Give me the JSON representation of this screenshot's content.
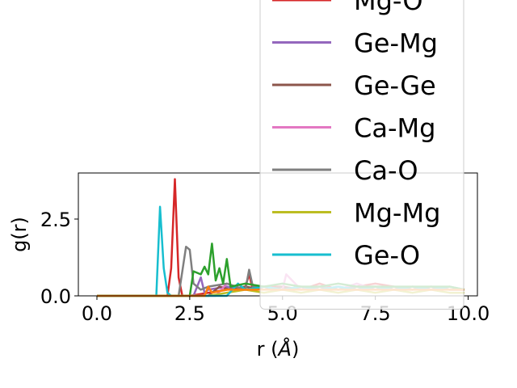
{
  "chart_data": {
    "type": "line",
    "title": "",
    "xlabel": "r (",
    "xlabel_unit": "Å",
    "xlabel_close": ")",
    "ylabel": "g(r)",
    "xlim": [
      -0.5,
      10.25
    ],
    "ylim": [
      0,
      4
    ],
    "xticks": [
      0.0,
      2.5,
      5.0,
      7.5,
      10.0
    ],
    "xtick_labels": [
      "0.0",
      "2.5",
      "5.0",
      "7.5",
      "10.0"
    ],
    "yticks": [
      0.0,
      2.5
    ],
    "ytick_labels": [
      "0.0",
      "2.5"
    ],
    "grid": false,
    "legend_placement": "upper right (overflowing above axes)",
    "series": [
      {
        "name": "Mg-O",
        "color": "#d62728",
        "x": [
          0,
          1.9,
          2.0,
          2.1,
          2.2,
          2.3,
          2.5,
          3.0,
          3.5,
          4.0,
          4.1,
          4.2,
          4.5,
          5.0,
          5.5,
          6.0,
          6.5,
          7.0,
          7.5,
          8.0,
          8.5,
          9.0,
          9.5,
          9.9
        ],
        "y": [
          0,
          0,
          0.9,
          3.8,
          0.6,
          0,
          0,
          0.1,
          0.2,
          0.3,
          0.7,
          0.2,
          0.3,
          0.3,
          0.2,
          0.4,
          0.2,
          0.3,
          0.4,
          0.3,
          0.2,
          0.3,
          0.2,
          0.2
        ]
      },
      {
        "name": "Ge-Mg",
        "color": "#9467bd",
        "x": [
          0,
          2.6,
          2.8,
          2.9,
          3.0,
          3.5,
          4.0,
          4.5,
          5.0,
          5.5,
          6.0,
          6.5,
          7.0,
          7.5,
          8.0,
          8.5,
          9.0,
          9.5,
          9.9
        ],
        "y": [
          0,
          0,
          0.6,
          0.1,
          0.2,
          0.3,
          0.2,
          0.3,
          0.2,
          0.3,
          0.2,
          0.3,
          0.2,
          0.3,
          0.2,
          0.2,
          0.3,
          0.2,
          0.2
        ]
      },
      {
        "name": "Ge-Ge",
        "color": "#8c564b",
        "x": [
          0,
          3.0,
          3.3,
          3.6,
          4.0,
          4.5,
          5.0,
          5.5,
          6.0,
          6.5,
          7.0,
          7.5,
          8.0,
          8.5,
          9.0,
          9.5,
          9.9
        ],
        "y": [
          0,
          0,
          0.3,
          0.2,
          0.3,
          0.2,
          0.3,
          0.2,
          0.3,
          0.2,
          0.3,
          0.3,
          0.2,
          0.3,
          0.2,
          0.3,
          0.2
        ]
      },
      {
        "name": "Ca-Mg",
        "color": "#e377c2",
        "x": [
          0,
          3.2,
          3.5,
          4.0,
          4.5,
          5.0,
          5.1,
          5.5,
          6.0,
          6.5,
          7.0,
          7.5,
          8.0,
          8.5,
          9.0,
          9.5,
          9.9
        ],
        "y": [
          0,
          0,
          0.4,
          0.2,
          0.3,
          0.2,
          0.7,
          0.2,
          0.3,
          0.2,
          0.4,
          0.2,
          0.3,
          0.2,
          0.3,
          0.2,
          0.2
        ]
      },
      {
        "name": "Ca-O",
        "color": "#7f7f7f",
        "x": [
          0,
          2.2,
          2.3,
          2.4,
          2.5,
          2.6,
          2.8,
          3.0,
          3.5,
          4.0,
          4.1,
          4.2,
          4.5,
          5.0,
          5.5,
          6.0,
          6.5,
          7.0,
          7.5,
          8.0,
          8.5,
          9.0,
          9.5,
          9.9
        ],
        "y": [
          0,
          0,
          0.8,
          1.6,
          1.5,
          0.4,
          0.2,
          0.3,
          0.4,
          0.2,
          0.85,
          0.3,
          0.3,
          0.2,
          0.3,
          0.3,
          0.2,
          0.3,
          0.2,
          0.3,
          0.2,
          0.3,
          0.2,
          0.2
        ]
      },
      {
        "name": "Mg-Mg",
        "color": "#bcbd22",
        "x": [
          0,
          3.0,
          3.5,
          4.0,
          4.5,
          5.0,
          5.5,
          6.0,
          6.5,
          7.0,
          7.5,
          8.0,
          8.5,
          9.0,
          9.5,
          9.9
        ],
        "y": [
          0,
          0,
          0.1,
          0.2,
          0.1,
          0.2,
          0.1,
          0.2,
          0.1,
          0.2,
          0.1,
          0.2,
          0.1,
          0.2,
          0.1,
          0.1
        ]
      },
      {
        "name": "Ge-O",
        "color": "#17becf",
        "x": [
          0,
          1.6,
          1.7,
          1.8,
          1.9,
          2.0,
          3.5,
          3.8,
          4.0,
          4.5,
          5.0,
          5.5,
          6.0,
          6.5,
          7.0,
          7.5,
          8.0,
          8.5,
          9.0,
          9.5,
          9.9
        ],
        "y": [
          0,
          0,
          2.9,
          0.9,
          0.1,
          0,
          0,
          0.4,
          0.2,
          0.3,
          0.2,
          0.3,
          0.2,
          0.3,
          0.2,
          0.3,
          0.2,
          0.3,
          0.2,
          0.3,
          0.2
        ]
      },
      {
        "name": "",
        "color": "#2ca02c",
        "in_legend": false,
        "x": [
          0,
          2.5,
          2.6,
          2.8,
          2.9,
          3.0,
          3.1,
          3.2,
          3.3,
          3.4,
          3.5,
          3.6,
          4.0,
          4.5,
          5.0,
          5.5,
          6.0,
          6.5,
          7.0,
          7.5,
          8.0,
          8.5,
          9.0,
          9.5,
          9.9
        ],
        "y": [
          0,
          0,
          0.8,
          0.7,
          0.95,
          0.7,
          1.7,
          0.5,
          0.9,
          0.4,
          1.2,
          0.3,
          0.4,
          0.3,
          0.4,
          0.3,
          0.3,
          0.4,
          0.3,
          0.3,
          0.3,
          0.3,
          0.3,
          0.3,
          0.2
        ]
      },
      {
        "name": "",
        "color": "#ff7f0e",
        "in_legend": false,
        "x": [
          0,
          2.9,
          3.0,
          3.1,
          3.5,
          4.0,
          4.5,
          5.0,
          5.5,
          6.0,
          6.5,
          7.0,
          7.5,
          8.0,
          8.5,
          9.0,
          9.5,
          9.9
        ],
        "y": [
          0,
          0,
          0.3,
          0.1,
          0.2,
          0.2,
          0.2,
          0.2,
          0.2,
          0.2,
          0.2,
          0.2,
          0.2,
          0.2,
          0.2,
          0.2,
          0.2,
          0.2
        ]
      }
    ]
  }
}
